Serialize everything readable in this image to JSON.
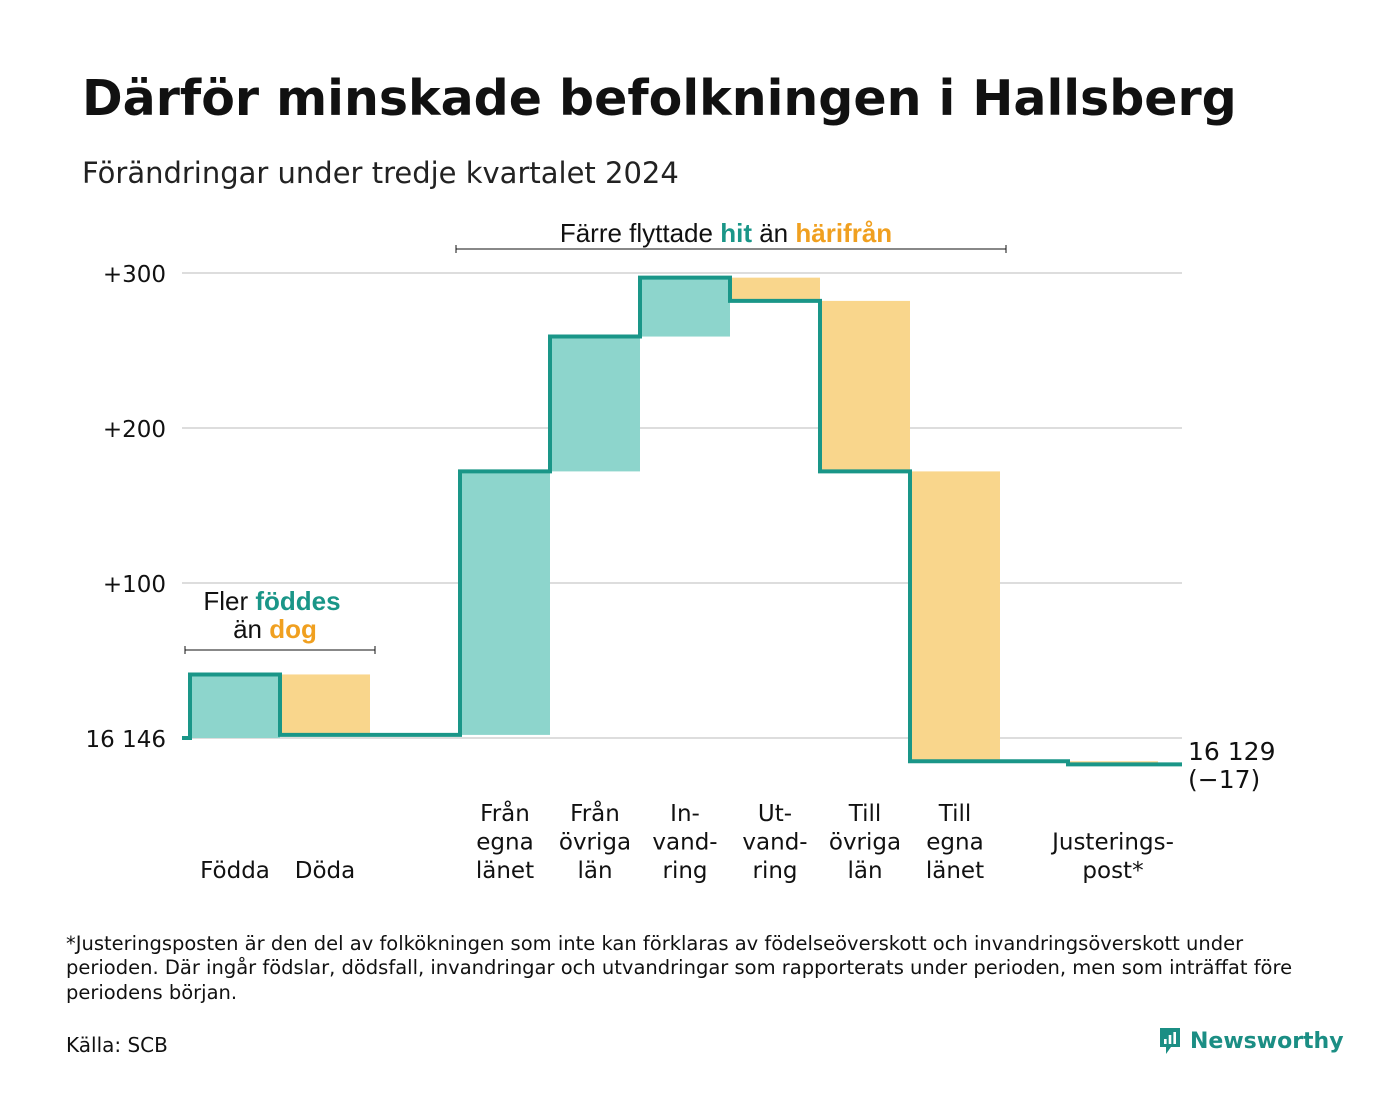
{
  "header": {
    "title": "Därför minskade befolkningen i Hallsberg",
    "subtitle": "Förändringar under tredje kvartalet 2024"
  },
  "annotations": {
    "births_line1_prefix": "Fler ",
    "births_line1_highlight": "föddes",
    "births_line2_prefix": "än ",
    "births_line2_highlight": "dog",
    "moves_prefix": "Färre flyttade ",
    "moves_highlight1": "hit",
    "moves_middle": " än ",
    "moves_highlight2": "härifrån"
  },
  "end_label": {
    "value": "16 129",
    "change": "(−17)"
  },
  "footnote": "*Justeringsposten är den del av folkökningen som inte kan förklaras av födelseöverskott och invandringsöverskott under perioden. Där ingår födslar, dödsfall, invandringar och utvandringar som rapporterats under perioden, men som inträffat före periodens början.",
  "source": "Källa: SCB",
  "brand": {
    "name": "Newsworthy",
    "icon": "newsworthy-logo-icon"
  },
  "colors": {
    "increase_fill": "#8dd5cc",
    "decrease_fill": "#f9d68c",
    "line": "#1a9688",
    "teal_text": "#1a9688",
    "orange_text": "#f0a020",
    "grid": "#dddddd"
  },
  "chart_data": {
    "type": "waterfall",
    "start_value": 16146,
    "end_value": 16129,
    "net_change": -17,
    "ylim": [
      -18,
      300
    ],
    "y_ticks": [
      {
        "value": 0,
        "label": "16 146"
      },
      {
        "value": 100,
        "label": "+100"
      },
      {
        "value": 200,
        "label": "+200"
      },
      {
        "value": 300,
        "label": "+300"
      }
    ],
    "steps": [
      {
        "label": [
          "Födda"
        ],
        "change": 41,
        "kind": "increase"
      },
      {
        "label": [
          "Döda"
        ],
        "change": -39,
        "kind": "decrease"
      },
      {
        "label": [
          "Från",
          "egna",
          "länet"
        ],
        "change": 170,
        "kind": "increase"
      },
      {
        "label": [
          "Från",
          "övriga",
          "län"
        ],
        "change": 87,
        "kind": "increase"
      },
      {
        "label": [
          "In-",
          "vand-",
          "ring"
        ],
        "change": 38,
        "kind": "increase"
      },
      {
        "label": [
          "Ut-",
          "vand-",
          "ring"
        ],
        "change": -15,
        "kind": "decrease"
      },
      {
        "label": [
          "Till",
          "övriga",
          "län"
        ],
        "change": -110,
        "kind": "decrease"
      },
      {
        "label": [
          "Till",
          "egna",
          "länet"
        ],
        "change": -187,
        "kind": "decrease"
      },
      {
        "label": [
          "Justerings-",
          "post*"
        ],
        "change": -2,
        "kind": "decrease"
      }
    ]
  }
}
